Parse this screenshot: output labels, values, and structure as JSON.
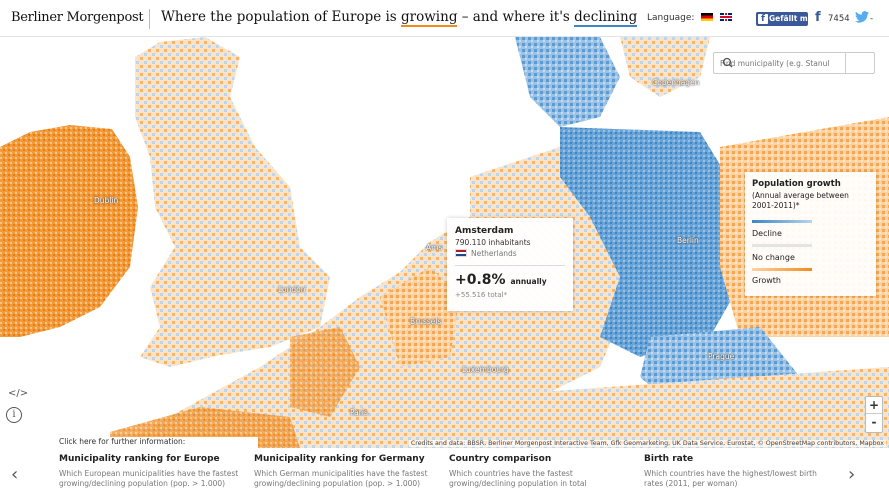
{
  "header": {
    "logo": "Berliner Morgenpost",
    "headline_pre": "Where the population of Europe is ",
    "headline_grow": "growing",
    "headline_mid": " – and where it's ",
    "headline_decl": "declining",
    "language_label": "Language:",
    "fb_like": "Gefällt mir",
    "fb_count": "7454",
    "tw_count": "-"
  },
  "search": {
    "placeholder": "Find municipality (e.g. Stanul"
  },
  "cities": {
    "dublin": "Dublin",
    "london": "London",
    "copenhagen": "Copenhagen",
    "berlin": "Berlin",
    "amsterdam": "Ams",
    "brussels": "Brussels",
    "luxembourg": "Luxembourg",
    "paris": "Paris",
    "prague": "Prague"
  },
  "popup": {
    "name": "Amsterdam",
    "population": "790.110 inhabitants",
    "country": "Netherlands",
    "rate": "+0.8%",
    "rate_unit": "annually",
    "total": "+55.516 total*"
  },
  "legend": {
    "title": "Population growth",
    "subtitle": "(Annual average between 2001-2011)*",
    "decline": "Decline",
    "no_change": "No change",
    "growth": "Growth"
  },
  "map_controls": {
    "zoom_in": "+",
    "zoom_out": "-",
    "embed": "</>",
    "info": "i"
  },
  "credits": "Credits and data: BBSR, Berliner Morgenpost Interactive Team, Gfk Geomarketing, UK Data Service, Eurostat, © OpenStreetMap contributors, Mapbox",
  "further_info": "Click here for further information:",
  "cards": [
    {
      "title": "Municipality ranking for Europe",
      "desc": "Which European municipalities have the fastest growing/declining population (pop. > 1.000)"
    },
    {
      "title": "Municipality ranking for Germany",
      "desc": "Which German municipalities have the fastest growing/declining population (pop. > 1.000)"
    },
    {
      "title": "Country comparison",
      "desc": "Which countries have the fastest growing/declining population in total"
    },
    {
      "title": "Birth rate",
      "desc": "Which countries have the highest/lowest birth rates (2011, per woman)"
    }
  ],
  "colors": {
    "growth": "#f08c1e",
    "decline": "#3b86c6",
    "growth_light": "#fbd3a5",
    "decline_light": "#b8d4ec"
  }
}
